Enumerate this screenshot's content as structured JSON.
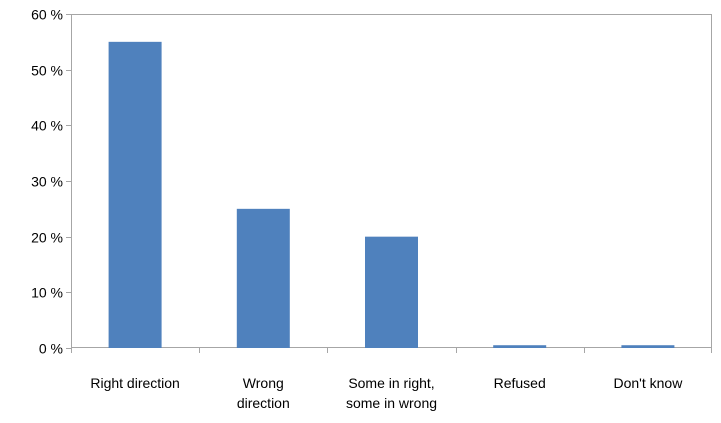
{
  "chart_data": {
    "type": "bar",
    "categories": [
      [
        "Right direction"
      ],
      [
        "Wrong",
        "direction"
      ],
      [
        "Some in right,",
        "some in wrong"
      ],
      [
        "Refused"
      ],
      [
        "Don't know"
      ]
    ],
    "values": [
      55,
      25,
      20,
      0.5,
      0.5
    ],
    "ylim": [
      0,
      60
    ],
    "y_ticks": [
      "0 %",
      "10 %",
      "20 %",
      "30 %",
      "40 %",
      "50 %",
      "60 %"
    ],
    "grid": false,
    "legend": "none",
    "title": "",
    "xlabel": "",
    "ylabel": "",
    "colors": {
      "bar": "#4f81bd",
      "axis": "#a6a6a6"
    }
  }
}
